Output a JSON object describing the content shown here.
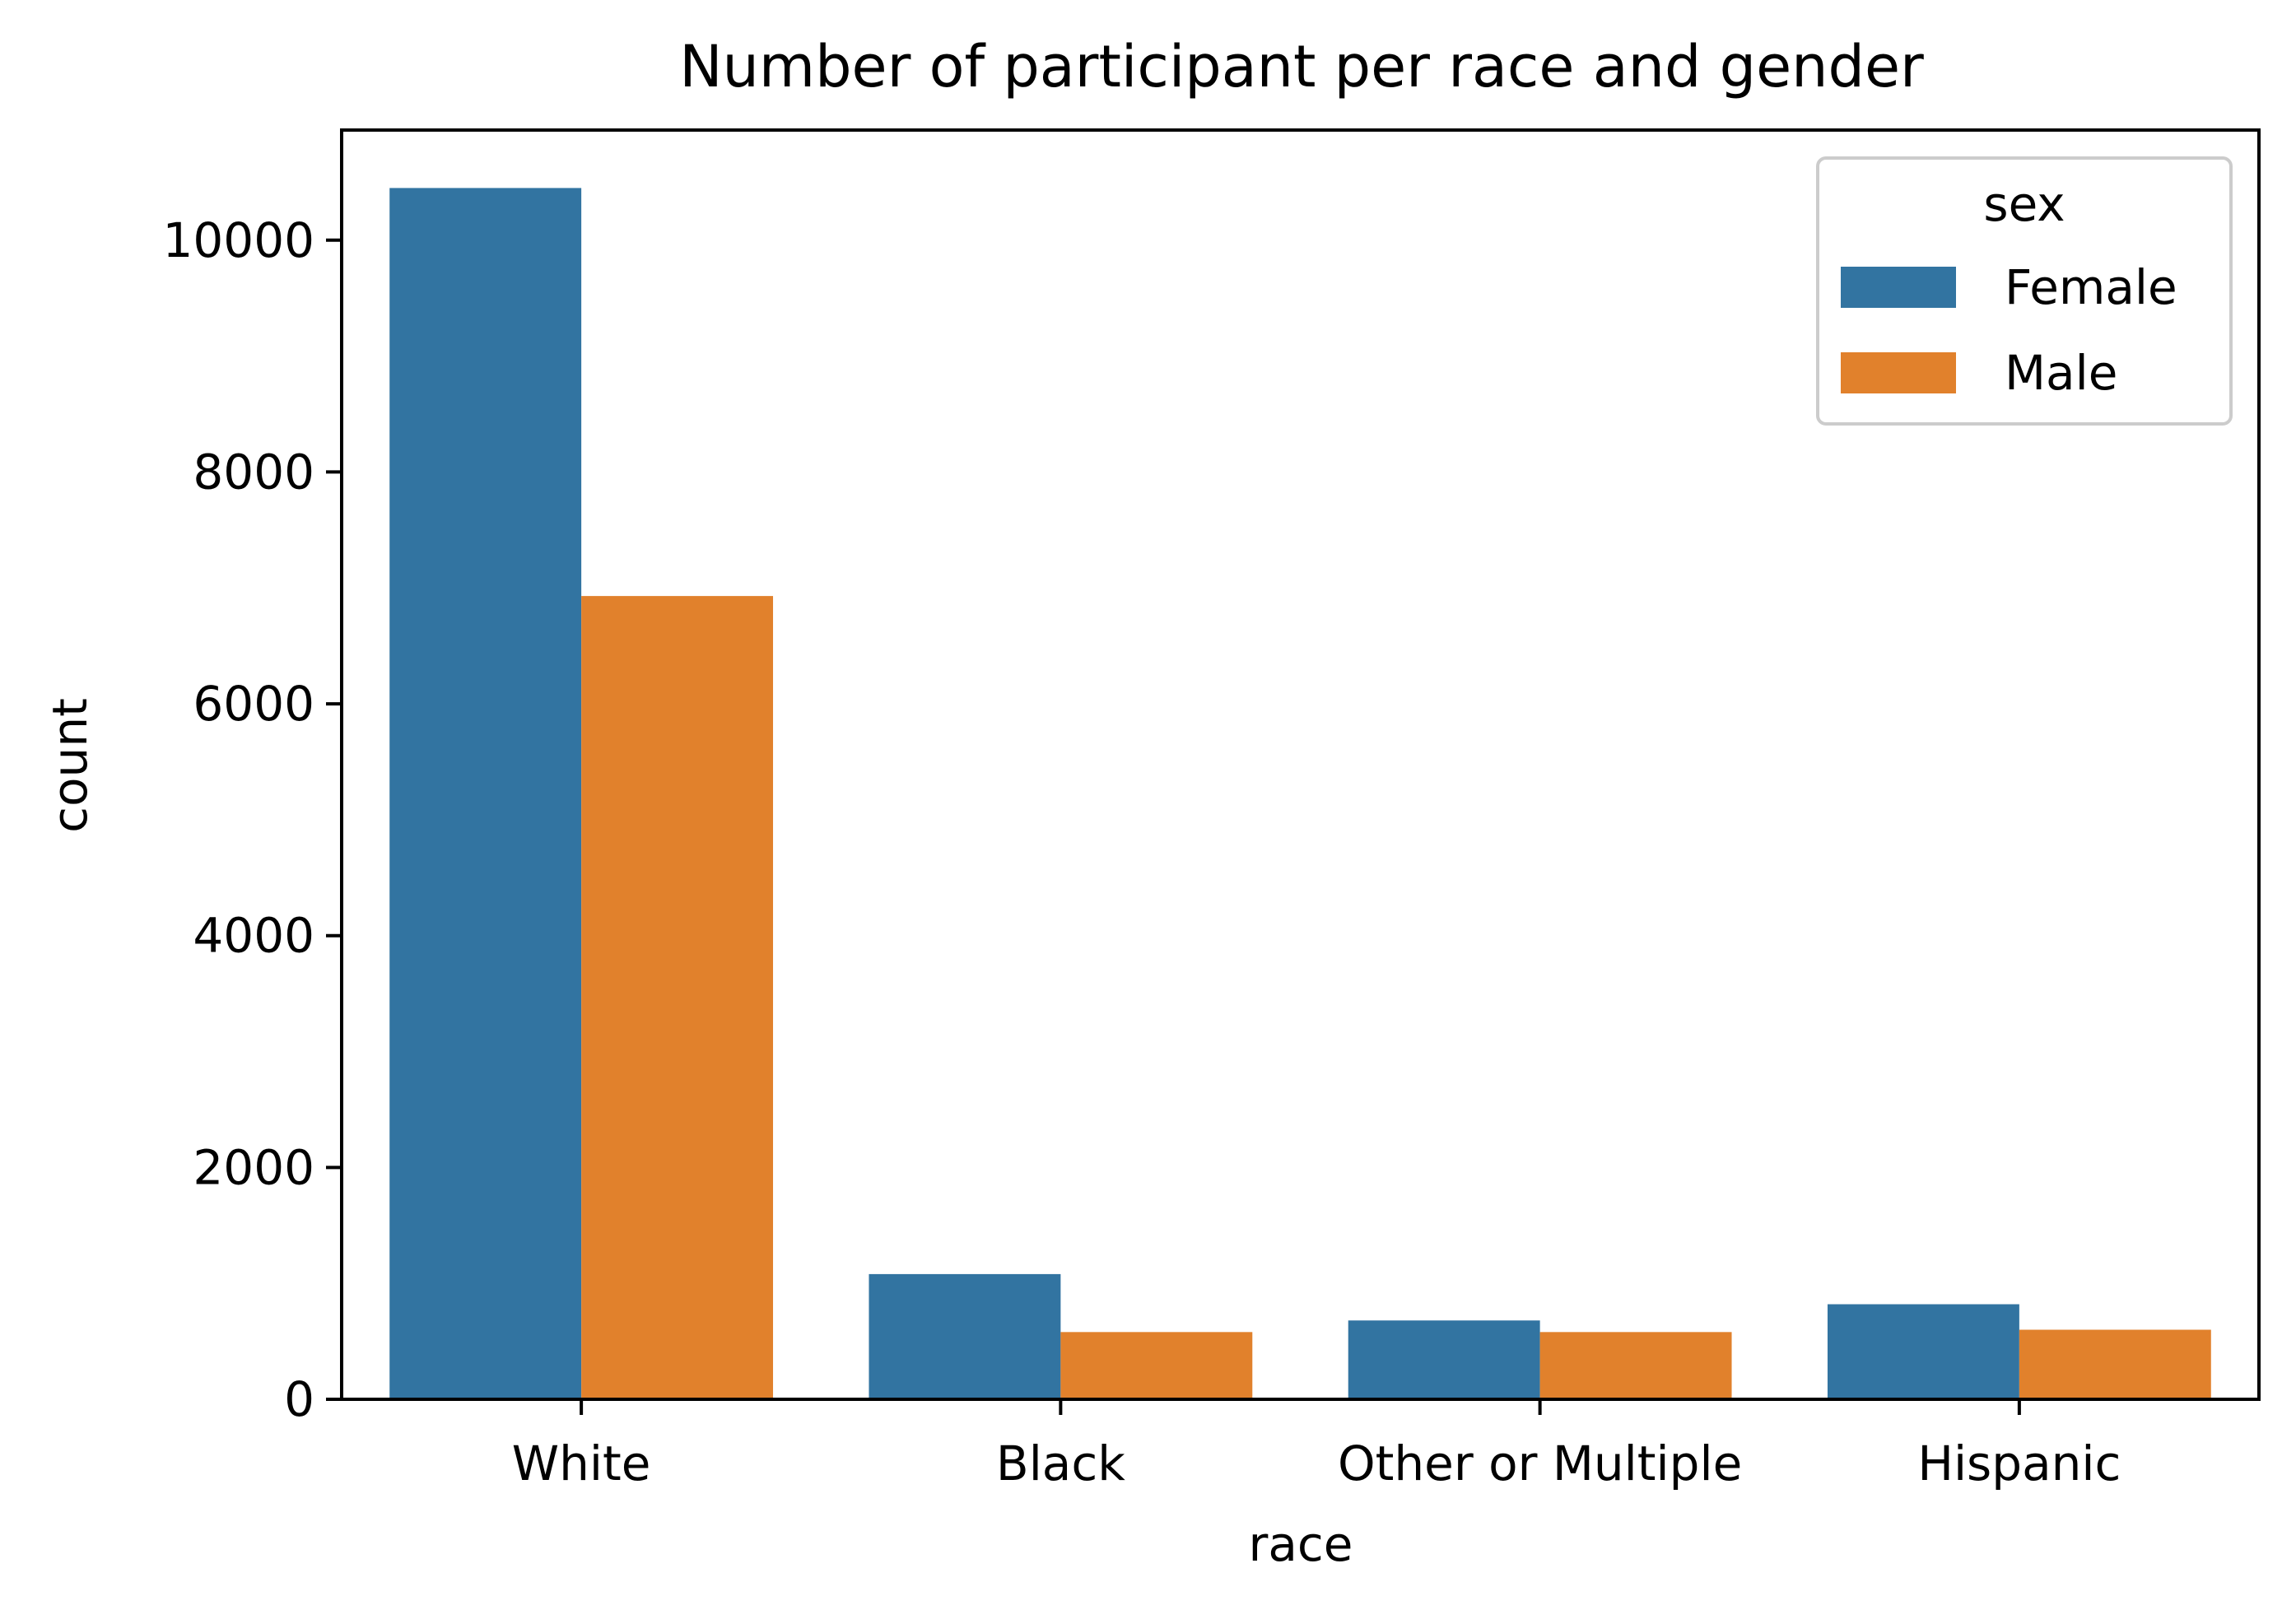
{
  "chart_data": {
    "type": "bar",
    "title": "Number of participant per race and gender",
    "xlabel": "race",
    "ylabel": "count",
    "categories": [
      "White",
      "Black",
      "Other or Multiple",
      "Hispanic"
    ],
    "series": [
      {
        "name": "Female",
        "color": "#3274a1",
        "values": [
          10450,
          1080,
          680,
          820
        ]
      },
      {
        "name": "Male",
        "color": "#e1812c",
        "values": [
          6930,
          580,
          580,
          600
        ]
      }
    ],
    "ylim": [
      0,
      10950
    ],
    "yticks": [
      0,
      2000,
      4000,
      6000,
      8000,
      10000
    ],
    "grid": false,
    "legend": {
      "title": "sex",
      "position": "top-right"
    }
  }
}
